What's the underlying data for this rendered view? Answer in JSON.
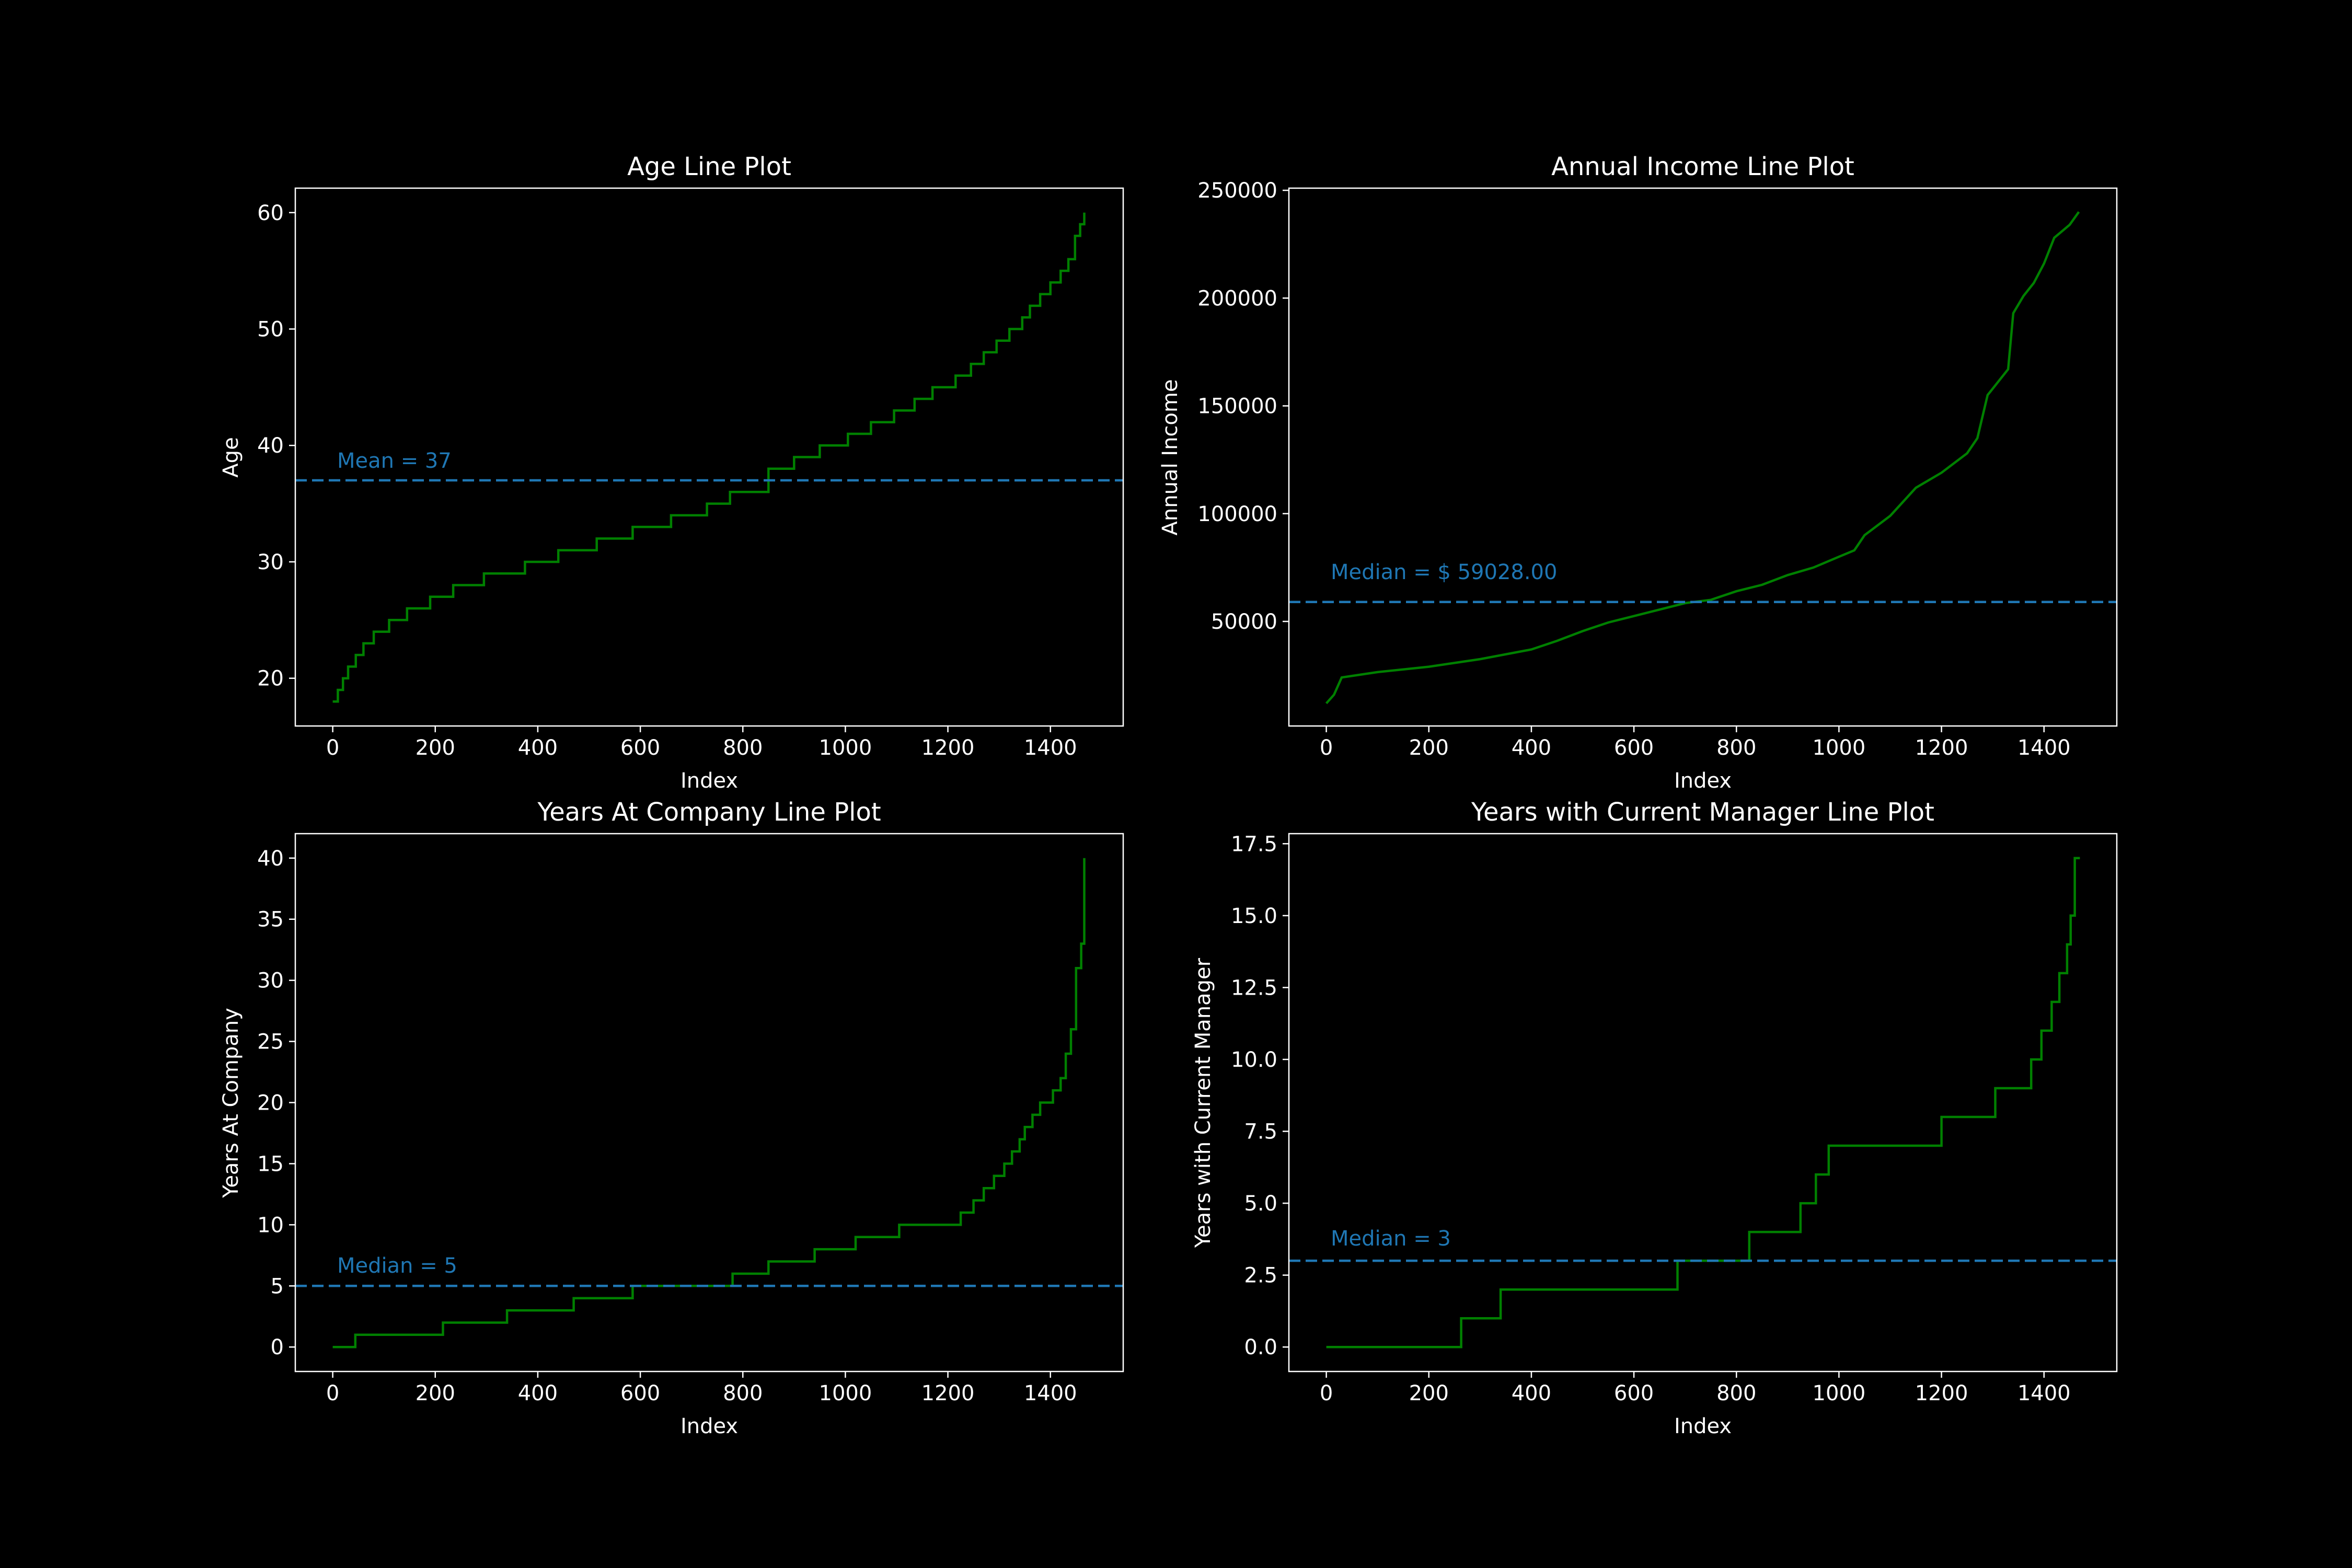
{
  "figure": {
    "background": "#000000",
    "axes_color": "#ffffff",
    "text_color": "#ffffff"
  },
  "chart_data": [
    {
      "type": "line",
      "title": "Age Line Plot",
      "xlabel": "Index",
      "ylabel": "Age",
      "xlim": [
        -73,
        1542
      ],
      "ylim": [
        15.9,
        62.1
      ],
      "xticks": [
        0,
        200,
        400,
        600,
        800,
        1000,
        1200,
        1400
      ],
      "yticks": [
        20,
        30,
        40,
        50,
        60
      ],
      "ytick_labels": [
        "20",
        "30",
        "40",
        "50",
        "60"
      ],
      "line_color": "#008000",
      "step": true,
      "points": [
        [
          0,
          18
        ],
        [
          10,
          19
        ],
        [
          20,
          20
        ],
        [
          30,
          21
        ],
        [
          45,
          22
        ],
        [
          60,
          23
        ],
        [
          80,
          24
        ],
        [
          110,
          25
        ],
        [
          145,
          26
        ],
        [
          190,
          27
        ],
        [
          235,
          28
        ],
        [
          295,
          29
        ],
        [
          375,
          30
        ],
        [
          440,
          31
        ],
        [
          515,
          32
        ],
        [
          585,
          33
        ],
        [
          660,
          34
        ],
        [
          730,
          35
        ],
        [
          775,
          36
        ],
        [
          850,
          38
        ],
        [
          900,
          39
        ],
        [
          950,
          40
        ],
        [
          1005,
          41
        ],
        [
          1050,
          42
        ],
        [
          1095,
          43
        ],
        [
          1135,
          44
        ],
        [
          1170,
          45
        ],
        [
          1215,
          46
        ],
        [
          1245,
          47
        ],
        [
          1270,
          48
        ],
        [
          1295,
          49
        ],
        [
          1320,
          50
        ],
        [
          1345,
          51
        ],
        [
          1360,
          52
        ],
        [
          1380,
          53
        ],
        [
          1400,
          54
        ],
        [
          1420,
          55
        ],
        [
          1435,
          56
        ],
        [
          1448,
          58
        ],
        [
          1458,
          59
        ],
        [
          1466,
          60
        ]
      ],
      "reference_line": {
        "y": 37,
        "label": "Mean = 37",
        "color": "#1f77b4",
        "style": "dashed"
      }
    },
    {
      "type": "line",
      "title": "Annual Income Line Plot",
      "xlabel": "Index",
      "ylabel": "Annual Income",
      "xlim": [
        -73,
        1542
      ],
      "ylim": [
        1500,
        251000
      ],
      "xticks": [
        0,
        200,
        400,
        600,
        800,
        1000,
        1200,
        1400
      ],
      "yticks": [
        50000,
        100000,
        150000,
        200000,
        250000
      ],
      "ytick_labels": [
        "50000",
        "100000",
        "150000",
        "200000",
        "250000"
      ],
      "line_color": "#008000",
      "step": false,
      "points": [
        [
          0,
          12000
        ],
        [
          15,
          16000
        ],
        [
          30,
          24000
        ],
        [
          100,
          26500
        ],
        [
          200,
          29000
        ],
        [
          300,
          32500
        ],
        [
          400,
          37000
        ],
        [
          450,
          41000
        ],
        [
          500,
          45500
        ],
        [
          550,
          49500
        ],
        [
          600,
          52500
        ],
        [
          650,
          55500
        ],
        [
          700,
          58500
        ],
        [
          750,
          60000
        ],
        [
          800,
          64000
        ],
        [
          850,
          67000
        ],
        [
          900,
          71500
        ],
        [
          950,
          75000
        ],
        [
          1000,
          80000
        ],
        [
          1030,
          83000
        ],
        [
          1050,
          90000
        ],
        [
          1100,
          99000
        ],
        [
          1150,
          112000
        ],
        [
          1200,
          119000
        ],
        [
          1250,
          128000
        ],
        [
          1270,
          135000
        ],
        [
          1290,
          155000
        ],
        [
          1330,
          167000
        ],
        [
          1340,
          193000
        ],
        [
          1360,
          201000
        ],
        [
          1380,
          207000
        ],
        [
          1400,
          216000
        ],
        [
          1420,
          228000
        ],
        [
          1450,
          234000
        ],
        [
          1468,
          240000
        ]
      ],
      "reference_line": {
        "y": 59028,
        "label": "Median = $ 59028.00",
        "color": "#1f77b4",
        "style": "dashed"
      }
    },
    {
      "type": "line",
      "title": "Years At Company Line Plot",
      "xlabel": "Index",
      "ylabel": "Years At Company",
      "xlim": [
        -73,
        1542
      ],
      "ylim": [
        -2,
        42
      ],
      "xticks": [
        0,
        200,
        400,
        600,
        800,
        1000,
        1200,
        1400
      ],
      "yticks": [
        0,
        5,
        10,
        15,
        20,
        25,
        30,
        35,
        40
      ],
      "ytick_labels": [
        "0",
        "5",
        "10",
        "15",
        "20",
        "25",
        "30",
        "35",
        "40"
      ],
      "line_color": "#008000",
      "step": true,
      "points": [
        [
          0,
          0
        ],
        [
          44,
          1
        ],
        [
          215,
          2
        ],
        [
          340,
          3
        ],
        [
          470,
          4
        ],
        [
          585,
          5
        ],
        [
          780,
          6
        ],
        [
          850,
          7
        ],
        [
          940,
          8
        ],
        [
          1020,
          9
        ],
        [
          1105,
          10
        ],
        [
          1225,
          11
        ],
        [
          1250,
          12
        ],
        [
          1270,
          13
        ],
        [
          1290,
          14
        ],
        [
          1310,
          15
        ],
        [
          1325,
          16
        ],
        [
          1340,
          17
        ],
        [
          1350,
          18
        ],
        [
          1365,
          19
        ],
        [
          1380,
          20
        ],
        [
          1405,
          21
        ],
        [
          1420,
          22
        ],
        [
          1430,
          24
        ],
        [
          1440,
          26
        ],
        [
          1450,
          31
        ],
        [
          1460,
          33
        ],
        [
          1466,
          40
        ]
      ],
      "reference_line": {
        "y": 5,
        "label": "Median = 5",
        "color": "#1f77b4",
        "style": "dashed"
      }
    },
    {
      "type": "line",
      "title": "Years with Current Manager Line Plot",
      "xlabel": "Index",
      "ylabel": "Years with Current Manager",
      "xlim": [
        -73,
        1542
      ],
      "ylim": [
        -0.85,
        17.85
      ],
      "xticks": [
        0,
        200,
        400,
        600,
        800,
        1000,
        1200,
        1400
      ],
      "yticks": [
        0,
        2.5,
        5,
        7.5,
        10,
        12.5,
        15,
        17.5
      ],
      "ytick_labels": [
        "0.0",
        "2.5",
        "5.0",
        "7.5",
        "10.0",
        "12.5",
        "15.0",
        "17.5"
      ],
      "line_color": "#008000",
      "step": true,
      "points": [
        [
          0,
          0
        ],
        [
          263,
          1
        ],
        [
          340,
          2
        ],
        [
          685,
          3
        ],
        [
          825,
          4
        ],
        [
          925,
          5
        ],
        [
          955,
          6
        ],
        [
          980,
          7
        ],
        [
          1200,
          8
        ],
        [
          1305,
          9
        ],
        [
          1375,
          10
        ],
        [
          1395,
          11
        ],
        [
          1415,
          12
        ],
        [
          1430,
          13
        ],
        [
          1445,
          14
        ],
        [
          1452,
          15
        ],
        [
          1460,
          17
        ],
        [
          1470,
          17
        ]
      ],
      "reference_line": {
        "y": 3,
        "label": "Median = 3",
        "color": "#1f77b4",
        "style": "dashed"
      }
    }
  ]
}
